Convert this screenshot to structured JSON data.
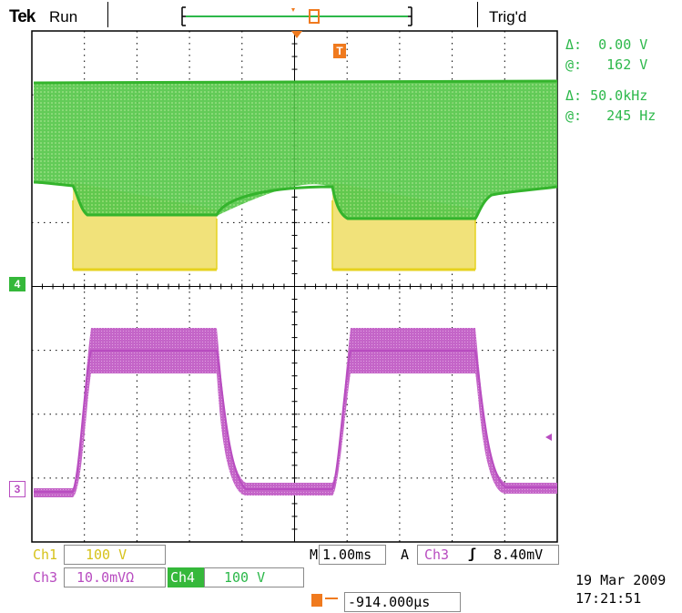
{
  "header": {
    "brand": "Tek",
    "run_state": "Run",
    "trigger_state": "Trig'd"
  },
  "cursor_readout": {
    "volt_delta": "Δ:  0.00 V",
    "volt_at": "@:   162 V",
    "freq_delta": "Δ: 50.0kHz",
    "freq_at": "@:   245 Hz"
  },
  "markers": {
    "trigger_marker": "T",
    "ch4_marker": "4",
    "ch3_marker": "3"
  },
  "channels": {
    "ch1_label": "Ch1",
    "ch1_scale": "100 V",
    "ch3_label": "Ch3",
    "ch3_scale": "10.0mVΩ",
    "ch4_label": "Ch4",
    "ch4_scale": "100 V"
  },
  "timebase": {
    "mode": "M",
    "scale": "1.00ms",
    "acq": "A",
    "trig_channel": "Ch3",
    "trig_slope_icon": "rising-edge-icon",
    "trig_slope_glyph": "ʃ",
    "trig_level": "8.40mV"
  },
  "position": {
    "delay_icon": "trigger-delay-icon",
    "delay_value": "-914.000µs"
  },
  "timestamp": {
    "date": "19 Mar 2009",
    "time": "17:21:51"
  },
  "colors": {
    "ch1": "#e6d21e",
    "ch3": "#b84cc0",
    "ch4": "#35b83a",
    "trigger": "#f07a1e",
    "readout": "#2cb84a",
    "grid": "#000000"
  }
}
